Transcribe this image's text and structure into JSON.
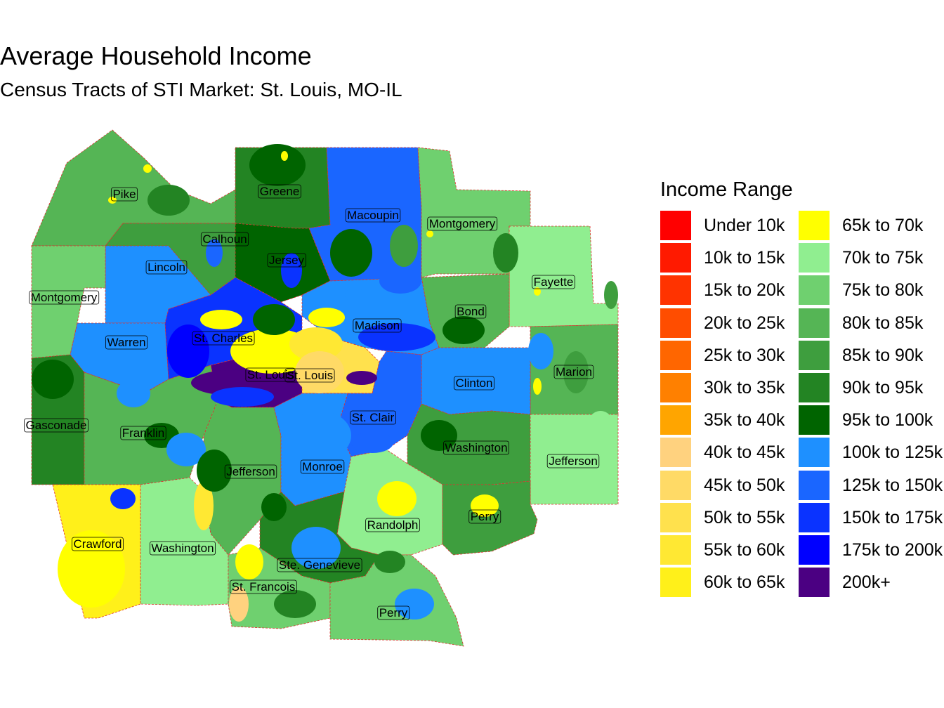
{
  "header": {
    "title": "Average Household Income",
    "subtitle": "Census Tracts of STI Market: St. Louis, MO-IL"
  },
  "legend": {
    "title": "Income Range",
    "items": [
      {
        "label": "Under 10k",
        "color": "#FF0000"
      },
      {
        "label": "10k to 15k",
        "color": "#FF1A00"
      },
      {
        "label": "15k to 20k",
        "color": "#FF3300"
      },
      {
        "label": "20k to 25k",
        "color": "#FF4D00"
      },
      {
        "label": "25k to 30k",
        "color": "#FF6600"
      },
      {
        "label": "30k to 35k",
        "color": "#FF8000"
      },
      {
        "label": "35k to 40k",
        "color": "#FFA500"
      },
      {
        "label": "40k to 45k",
        "color": "#FFD27F"
      },
      {
        "label": "45k to 50k",
        "color": "#FFDA66"
      },
      {
        "label": "50k to 55k",
        "color": "#FFE14D"
      },
      {
        "label": "55k to 60k",
        "color": "#FFE833"
      },
      {
        "label": "60k to 65k",
        "color": "#FFF01A"
      },
      {
        "label": "65k to 70k",
        "color": "#FFFF00"
      },
      {
        "label": "70k to 75k",
        "color": "#90EE90"
      },
      {
        "label": "75k to 80k",
        "color": "#6FD06F"
      },
      {
        "label": "80k to 85k",
        "color": "#55B555"
      },
      {
        "label": "85k to 90k",
        "color": "#3E9E3E"
      },
      {
        "label": "90k to 95k",
        "color": "#238423"
      },
      {
        "label": "95k to 100k",
        "color": "#006400"
      },
      {
        "label": "100k to 125k",
        "color": "#1E90FF"
      },
      {
        "label": "125k to 150k",
        "color": "#1A66FF"
      },
      {
        "label": "150k to 175k",
        "color": "#0A33FF"
      },
      {
        "label": "175k to 200k",
        "color": "#0000FF"
      },
      {
        "label": "200k+",
        "color": "#4B0082"
      }
    ]
  },
  "map": {
    "counties": [
      {
        "name": "Pike",
        "fill": "#55B555"
      },
      {
        "name": "Greene",
        "fill": "#238423"
      },
      {
        "name": "Macoupin",
        "fill": "#1A66FF"
      },
      {
        "name": "Montgomery",
        "fill": "#6FD06F"
      },
      {
        "name": "Calhoun",
        "fill": "#3E9E3E"
      },
      {
        "name": "Jersey",
        "fill": "#006400"
      },
      {
        "name": "Lincoln",
        "fill": "#1E90FF"
      },
      {
        "name": "Fayette",
        "fill": "#90EE90"
      },
      {
        "name": "Montgomery",
        "fill": "#6FD06F"
      },
      {
        "name": "Bond",
        "fill": "#55B555"
      },
      {
        "name": "Madison",
        "fill": "#1E90FF"
      },
      {
        "name": "Warren",
        "fill": "#1E90FF"
      },
      {
        "name": "St. Charles",
        "fill": "#0A33FF"
      },
      {
        "name": "St. Louis",
        "fill": "#4B0082"
      },
      {
        "name": "St. Louis",
        "fill": "#FFE14D"
      },
      {
        "name": "Marion",
        "fill": "#55B555"
      },
      {
        "name": "Clinton",
        "fill": "#1E90FF"
      },
      {
        "name": "Gasconade",
        "fill": "#238423"
      },
      {
        "name": "Franklin",
        "fill": "#55B555"
      },
      {
        "name": "St. Clair",
        "fill": "#1A66FF"
      },
      {
        "name": "Washington",
        "fill": "#3E9E3E"
      },
      {
        "name": "Jefferson",
        "fill": "#55B555"
      },
      {
        "name": "Monroe",
        "fill": "#1E90FF"
      },
      {
        "name": "Jefferson",
        "fill": "#90EE90"
      },
      {
        "name": "Randolph",
        "fill": "#90EE90"
      },
      {
        "name": "Perry",
        "fill": "#3E9E3E"
      },
      {
        "name": "Crawford",
        "fill": "#FFF01A"
      },
      {
        "name": "Washington",
        "fill": "#90EE90"
      },
      {
        "name": "Ste. Genevieve",
        "fill": "#238423"
      },
      {
        "name": "St. Francois",
        "fill": "#6FD06F"
      },
      {
        "name": "Perry",
        "fill": "#6FD06F"
      }
    ]
  }
}
